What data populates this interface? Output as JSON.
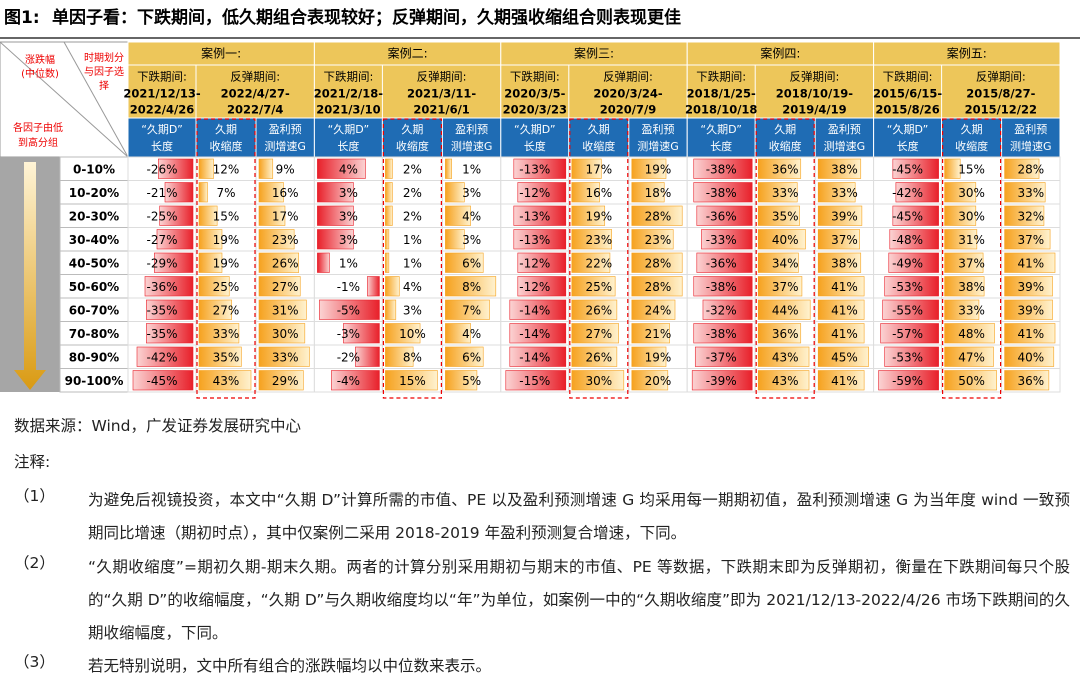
{
  "title": {
    "label": "图1:",
    "text": "单因子看：下跌期间，低久期组合表现较好；反弹期间，久期强收缩组合则表现更佳"
  },
  "table": {
    "corner": {
      "change": [
        "涨跌幅",
        "(中位数)"
      ],
      "period": [
        "时期划分",
        "与因子选",
        "择"
      ],
      "groups": [
        "各因子由低",
        "到高分组"
      ]
    },
    "row_labels": [
      "0-10%",
      "10-20%",
      "20-30%",
      "30-40%",
      "40-50%",
      "50-60%",
      "60-70%",
      "70-80%",
      "80-90%",
      "90-100%"
    ],
    "cases": [
      {
        "name": "案例一:",
        "fall_label": "下跌期间:",
        "fall": [
          "2021/12/13-",
          "2022/4/26"
        ],
        "rebound_label": "反弹期间:",
        "rebound": [
          "2022/4/27-",
          "2022/7/4"
        ],
        "columns": [
          [
            "“久期D”",
            "长度"
          ],
          [
            "久期",
            "收缩度"
          ],
          [
            "盈利预",
            "测增速G"
          ]
        ],
        "rows": [
          [
            "-26%",
            "12%",
            "9%"
          ],
          [
            "-21%",
            "7%",
            "16%"
          ],
          [
            "-25%",
            "15%",
            "17%"
          ],
          [
            "-27%",
            "19%",
            "23%"
          ],
          [
            "-29%",
            "19%",
            "26%"
          ],
          [
            "-36%",
            "25%",
            "27%"
          ],
          [
            "-35%",
            "27%",
            "31%"
          ],
          [
            "-35%",
            "33%",
            "30%"
          ],
          [
            "-42%",
            "35%",
            "33%"
          ],
          [
            "-45%",
            "43%",
            "29%"
          ]
        ]
      },
      {
        "name": "案例二:",
        "fall_label": "下跌期间:",
        "fall": [
          "2021/2/18-",
          "2021/3/10"
        ],
        "rebound_label": "反弹期间:",
        "rebound": [
          "2021/3/11-",
          "2021/6/1"
        ],
        "columns": [
          [
            "“久期D”",
            "长度"
          ],
          [
            "久期",
            "收缩度"
          ],
          [
            "盈利预",
            "测增速G"
          ]
        ],
        "rows": [
          [
            "4%",
            "2%",
            "1%"
          ],
          [
            "3%",
            "2%",
            "3%"
          ],
          [
            "3%",
            "2%",
            "4%"
          ],
          [
            "3%",
            "1%",
            "3%"
          ],
          [
            "1%",
            "1%",
            "6%"
          ],
          [
            "-1%",
            "4%",
            "8%"
          ],
          [
            "-5%",
            "3%",
            "7%"
          ],
          [
            "-3%",
            "10%",
            "4%"
          ],
          [
            "-2%",
            "8%",
            "6%"
          ],
          [
            "-4%",
            "15%",
            "5%"
          ]
        ]
      },
      {
        "name": "案例三:",
        "fall_label": "下跌期间:",
        "fall": [
          "2020/3/5-",
          "2020/3/23"
        ],
        "rebound_label": "反弹期间:",
        "rebound": [
          "2020/3/24-",
          "2020/7/9"
        ],
        "columns": [
          [
            "“久期D”",
            "长度"
          ],
          [
            "久期",
            "收缩度"
          ],
          [
            "盈利预",
            "测增速G"
          ]
        ],
        "rows": [
          [
            "-13%",
            "17%",
            "19%"
          ],
          [
            "-12%",
            "16%",
            "18%"
          ],
          [
            "-13%",
            "19%",
            "28%"
          ],
          [
            "-13%",
            "23%",
            "23%"
          ],
          [
            "-12%",
            "22%",
            "28%"
          ],
          [
            "-12%",
            "25%",
            "28%"
          ],
          [
            "-14%",
            "26%",
            "24%"
          ],
          [
            "-14%",
            "27%",
            "21%"
          ],
          [
            "-14%",
            "26%",
            "19%"
          ],
          [
            "-15%",
            "30%",
            "20%"
          ]
        ]
      },
      {
        "name": "案例四:",
        "fall_label": "下跌期间:",
        "fall": [
          "2018/1/25-",
          "2018/10/18"
        ],
        "rebound_label": "反弹期间:",
        "rebound": [
          "2018/10/19-",
          "2019/4/19"
        ],
        "columns": [
          [
            "“久期D”",
            "长度"
          ],
          [
            "久期",
            "收缩度"
          ],
          [
            "盈利预",
            "测增速G"
          ]
        ],
        "rows": [
          [
            "-38%",
            "36%",
            "38%"
          ],
          [
            "-38%",
            "33%",
            "33%"
          ],
          [
            "-36%",
            "35%",
            "39%"
          ],
          [
            "-33%",
            "40%",
            "37%"
          ],
          [
            "-36%",
            "34%",
            "38%"
          ],
          [
            "-38%",
            "37%",
            "41%"
          ],
          [
            "-32%",
            "44%",
            "41%"
          ],
          [
            "-38%",
            "36%",
            "41%"
          ],
          [
            "-37%",
            "43%",
            "45%"
          ],
          [
            "-39%",
            "43%",
            "41%"
          ]
        ]
      },
      {
        "name": "案例五:",
        "fall_label": "下跌期间:",
        "fall": [
          "2015/6/15-",
          "2015/8/26"
        ],
        "rebound_label": "反弹期间:",
        "rebound": [
          "2015/8/27-",
          "2015/12/22"
        ],
        "columns": [
          [
            "“久期D”",
            "长度"
          ],
          [
            "久期",
            "收缩度"
          ],
          [
            "盈利预",
            "测增速G"
          ]
        ],
        "rows": [
          [
            "-45%",
            "15%",
            "28%"
          ],
          [
            "-42%",
            "30%",
            "33%"
          ],
          [
            "-45%",
            "30%",
            "32%"
          ],
          [
            "-48%",
            "31%",
            "37%"
          ],
          [
            "-49%",
            "37%",
            "41%"
          ],
          [
            "-53%",
            "38%",
            "39%"
          ],
          [
            "-55%",
            "33%",
            "39%"
          ],
          [
            "-57%",
            "48%",
            "41%"
          ],
          [
            "-53%",
            "47%",
            "40%"
          ],
          [
            "-59%",
            "50%",
            "36%"
          ]
        ]
      }
    ]
  },
  "source": "数据来源：Wind，广发证券发展研究中心",
  "notes_label": "注释:",
  "notes": [
    {
      "num": "（1）",
      "text": "为避免后视镜投资，本文中“久期 D”计算所需的市值、PE 以及盈利预测增速 G 均采用每一期期初值，盈利预测增速 G 为当年度 wind 一致预期同比增速（期初时点），其中仅案例二采用 2018-2019 年盈利预测复合增速，下同。"
    },
    {
      "num": "（2）",
      "text": "“久期收缩度”=期初久期-期末久期。两者的计算分别采用期初与期末的市值、PE 等数据，下跌期末即为反弹期初，衡量在下跌期间每只个股的“久期 D”的收缩幅度，“久期 D”与久期收缩度均以“年”为单位，如案例一中的“久期收缩度”即为 2021/12/13-2022/4/26 市场下跌期间的久期收缩幅度，下同。"
    },
    {
      "num": "（3）",
      "text": "若无特别说明，文中所有组合的涨跌幅均以中位数来表示。"
    }
  ]
}
